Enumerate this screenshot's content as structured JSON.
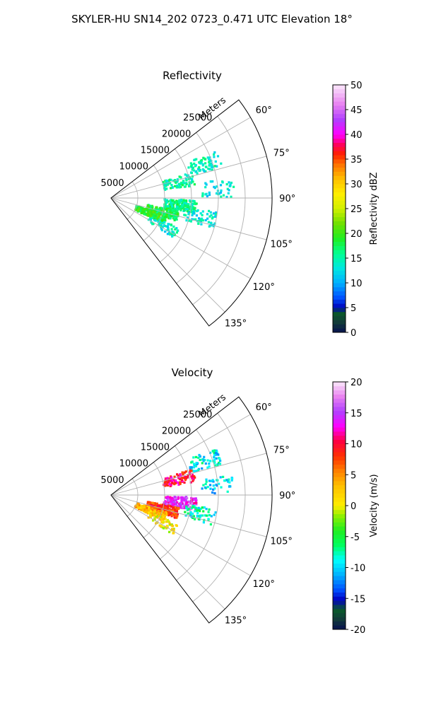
{
  "figure_title": "SKYLER-HU  SN14_202  0723_0.471 UTC Elevation 18°",
  "chart_data": [
    {
      "type": "polar-sector",
      "title": "Reflectivity",
      "radial_label": "Meters",
      "radial_ticks": [
        "5000",
        "10000",
        "15000",
        "20000",
        "25000"
      ],
      "radial_range": [
        0,
        30000
      ],
      "azimuth_ticks": [
        "60°",
        "75°",
        "90°",
        "105°",
        "120°",
        "135°"
      ],
      "azimuth_range_deg": [
        52.5,
        142.5
      ],
      "grid": true,
      "colorbar": {
        "label": "Reflectivity dBZ",
        "range": [
          0,
          50
        ],
        "ticks": [
          "0",
          "5",
          "10",
          "15",
          "20",
          "25",
          "30",
          "35",
          "40",
          "45",
          "50"
        ]
      },
      "echo_blobs": [
        {
          "az": 70,
          "r": 18500,
          "count": 70,
          "value": 14
        },
        {
          "az": 77,
          "r": 13000,
          "count": 90,
          "value": 15
        },
        {
          "az": 85,
          "r": 20000,
          "count": 40,
          "value": 13
        },
        {
          "az": 96,
          "r": 13000,
          "count": 160,
          "value": 16
        },
        {
          "az": 105,
          "r": 10000,
          "count": 220,
          "value": 18
        },
        {
          "az": 112,
          "r": 8000,
          "count": 180,
          "value": 19
        },
        {
          "az": 102,
          "r": 17000,
          "count": 60,
          "value": 13
        },
        {
          "az": 118,
          "r": 11000,
          "count": 60,
          "value": 14
        }
      ]
    },
    {
      "type": "polar-sector",
      "title": "Velocity",
      "radial_label": "Meters",
      "radial_ticks": [
        "5000",
        "10000",
        "15000",
        "20000",
        "25000"
      ],
      "radial_range": [
        0,
        30000
      ],
      "azimuth_ticks": [
        "60°",
        "75°",
        "90°",
        "105°",
        "120°",
        "135°"
      ],
      "azimuth_range_deg": [
        52.5,
        142.5
      ],
      "grid": true,
      "colorbar": {
        "label": "Velocity (m/s)",
        "range": [
          -20,
          20
        ],
        "ticks": [
          "-20",
          "-15",
          "-10",
          "-5",
          "0",
          "5",
          "10",
          "15",
          "20"
        ]
      },
      "echo_blobs": [
        {
          "az": 70,
          "r": 18500,
          "count": 70,
          "value": -9
        },
        {
          "az": 77,
          "r": 13000,
          "count": 90,
          "value": 10
        },
        {
          "az": 85,
          "r": 20000,
          "count": 40,
          "value": -10
        },
        {
          "az": 96,
          "r": 13000,
          "count": 160,
          "value": 14
        },
        {
          "az": 105,
          "r": 10000,
          "count": 220,
          "value": 8
        },
        {
          "az": 112,
          "r": 8000,
          "count": 180,
          "value": 3
        },
        {
          "az": 102,
          "r": 17000,
          "count": 60,
          "value": -8
        },
        {
          "az": 118,
          "r": 11000,
          "count": 60,
          "value": 1
        }
      ]
    }
  ]
}
